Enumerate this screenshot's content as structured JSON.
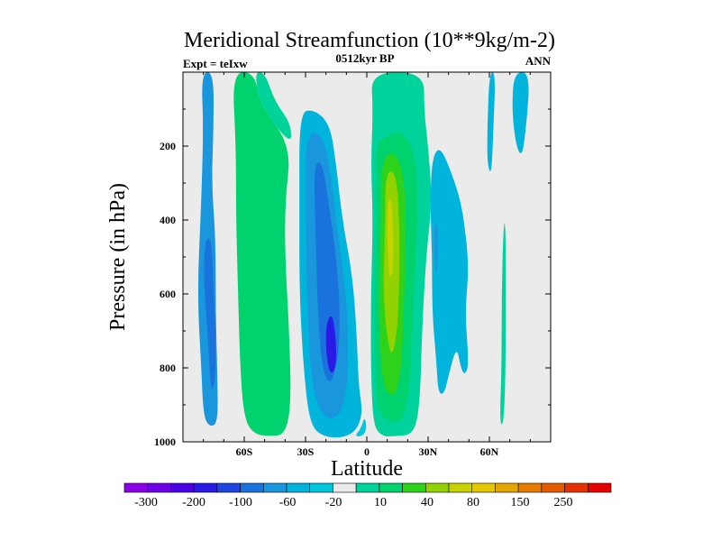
{
  "chart_data": {
    "type": "contour",
    "title": "Meridional Streamfunction (10**9kg/m-2)",
    "left_annotation": "Expt = teIxw",
    "center_annotation": "0512kyr BP",
    "right_annotation": "ANN",
    "xlabel": "Latitude",
    "ylabel": "Pressure (in hPa)",
    "xlim": [
      -90,
      90
    ],
    "ylim": [
      1000,
      0
    ],
    "x_ticks": [
      {
        "value": -60,
        "label": "60S"
      },
      {
        "value": -30,
        "label": "30S"
      },
      {
        "value": 0,
        "label": "0"
      },
      {
        "value": 30,
        "label": "30N"
      },
      {
        "value": 60,
        "label": "60N"
      }
    ],
    "y_ticks": [
      {
        "value": 200,
        "label": "200"
      },
      {
        "value": 400,
        "label": "400"
      },
      {
        "value": 600,
        "label": "600"
      },
      {
        "value": 800,
        "label": "800"
      },
      {
        "value": 1000,
        "label": "1000"
      }
    ],
    "colorbar": {
      "colors": [
        "#8c00e6",
        "#6d00e6",
        "#4b00e6",
        "#2a1ae6",
        "#1f46e0",
        "#1a72dc",
        "#1a96dc",
        "#00b4dc",
        "#00c8dc",
        "#ebebeb",
        "#00d29b",
        "#00d26e",
        "#2fd21a",
        "#91d200",
        "#c8d200",
        "#e6c800",
        "#e6a500",
        "#e67d00",
        "#e65a00",
        "#e63200",
        "#e60000"
      ],
      "labels": [
        "-300",
        "-200",
        "-100",
        "-60",
        "-20",
        "10",
        "40",
        "80",
        "150",
        "250"
      ]
    },
    "regions": [
      {
        "name": "sh-polar-cell",
        "level": -40,
        "points": [
          [
            -81,
            0
          ],
          [
            -80,
            150
          ],
          [
            -81,
            350
          ],
          [
            -83,
            600
          ],
          [
            -81,
            800
          ],
          [
            -80,
            930
          ],
          [
            -77,
            960
          ],
          [
            -73,
            950
          ],
          [
            -73,
            850
          ],
          [
            -74,
            650
          ],
          [
            -74,
            450
          ],
          [
            -76,
            300
          ],
          [
            -75,
            150
          ],
          [
            -75,
            0
          ]
        ]
      },
      {
        "name": "sh-polar-cell-core",
        "level": -60,
        "points": [
          [
            -79,
            450
          ],
          [
            -80,
            550
          ],
          [
            -78,
            700
          ],
          [
            -77,
            800
          ],
          [
            -76,
            870
          ],
          [
            -74,
            820
          ],
          [
            -74,
            700
          ],
          [
            -75,
            600
          ],
          [
            -76,
            450
          ]
        ]
      },
      {
        "name": "sh-ferrel-cell",
        "level": 30,
        "points": [
          [
            -66,
            0
          ],
          [
            -64,
            200
          ],
          [
            -64,
            400
          ],
          [
            -63,
            600
          ],
          [
            -62,
            800
          ],
          [
            -60,
            940
          ],
          [
            -55,
            980
          ],
          [
            -47,
            985
          ],
          [
            -40,
            980
          ],
          [
            -37,
            900
          ],
          [
            -38,
            700
          ],
          [
            -40,
            500
          ],
          [
            -40,
            350
          ],
          [
            -37,
            200
          ],
          [
            -52,
            90
          ],
          [
            -55,
            0
          ]
        ]
      },
      {
        "name": "sh-ferrel-outer",
        "level": 10,
        "points": [
          [
            -55,
            0
          ],
          [
            -52,
            90
          ],
          [
            -37,
            200
          ],
          [
            -37,
            140
          ],
          [
            -45,
            80
          ],
          [
            -50,
            0
          ]
        ]
      },
      {
        "name": "sh-hadley-outer",
        "level": -20,
        "points": [
          [
            -33,
            110
          ],
          [
            -33,
            350
          ],
          [
            -33,
            600
          ],
          [
            -31,
            800
          ],
          [
            -28,
            950
          ],
          [
            -22,
            985
          ],
          [
            -12,
            990
          ],
          [
            -5,
            970
          ],
          [
            -2,
            920
          ],
          [
            -4,
            850
          ],
          [
            -5,
            700
          ],
          [
            -7,
            550
          ],
          [
            -12,
            400
          ],
          [
            -15,
            250
          ],
          [
            -18,
            140
          ],
          [
            -26,
            100
          ]
        ]
      },
      {
        "name": "sh-hadley-mid",
        "level": -40,
        "points": [
          [
            -30,
            160
          ],
          [
            -30,
            400
          ],
          [
            -29,
            650
          ],
          [
            -27,
            850
          ],
          [
            -22,
            930
          ],
          [
            -15,
            940
          ],
          [
            -10,
            880
          ],
          [
            -9,
            750
          ],
          [
            -10,
            600
          ],
          [
            -14,
            450
          ],
          [
            -17,
            300
          ],
          [
            -21,
            170
          ]
        ]
      },
      {
        "name": "sh-hadley-inner",
        "level": -60,
        "points": [
          [
            -26,
            250
          ],
          [
            -25,
            450
          ],
          [
            -24,
            650
          ],
          [
            -22,
            800
          ],
          [
            -18,
            850
          ],
          [
            -14,
            780
          ],
          [
            -13,
            650
          ],
          [
            -15,
            500
          ],
          [
            -19,
            340
          ],
          [
            -22,
            240
          ]
        ]
      },
      {
        "name": "sh-hadley-core",
        "level": -100,
        "points": [
          [
            -20,
            680
          ],
          [
            -20,
            760
          ],
          [
            -18,
            820
          ],
          [
            -15,
            800
          ],
          [
            -15,
            720
          ],
          [
            -17,
            650
          ]
        ]
      },
      {
        "name": "equatorial-gap",
        "level": -10,
        "points": [
          [
            -1,
            930
          ],
          [
            0,
            965
          ],
          [
            -2,
            985
          ],
          [
            -6,
            985
          ],
          [
            -3,
            965
          ]
        ]
      },
      {
        "name": "nh-hadley-outer",
        "level": 10,
        "points": [
          [
            2,
            0
          ],
          [
            3,
            100
          ],
          [
            2,
            250
          ],
          [
            3,
            400
          ],
          [
            2,
            600
          ],
          [
            2,
            800
          ],
          [
            3,
            950
          ],
          [
            7,
            985
          ],
          [
            14,
            985
          ],
          [
            23,
            980
          ],
          [
            26,
            900
          ],
          [
            27,
            700
          ],
          [
            29,
            500
          ],
          [
            32,
            350
          ],
          [
            30,
            200
          ],
          [
            28,
            100
          ],
          [
            28,
            0
          ]
        ]
      },
      {
        "name": "nh-hadley-mid",
        "level": 30,
        "points": [
          [
            4,
            200
          ],
          [
            5,
            350
          ],
          [
            4,
            550
          ],
          [
            4,
            750
          ],
          [
            5,
            920
          ],
          [
            12,
            950
          ],
          [
            18,
            940
          ],
          [
            21,
            850
          ],
          [
            22,
            700
          ],
          [
            24,
            500
          ],
          [
            25,
            350
          ],
          [
            24,
            230
          ],
          [
            18,
            160
          ],
          [
            10,
            170
          ]
        ]
      },
      {
        "name": "nh-hadley-inner",
        "level": 50,
        "points": [
          [
            7,
            250
          ],
          [
            7,
            400
          ],
          [
            6,
            550
          ],
          [
            6,
            700
          ],
          [
            8,
            860
          ],
          [
            14,
            880
          ],
          [
            17,
            800
          ],
          [
            18,
            650
          ],
          [
            19,
            500
          ],
          [
            19,
            350
          ],
          [
            17,
            250
          ],
          [
            12,
            210
          ]
        ]
      },
      {
        "name": "nh-hadley-core",
        "level": 70,
        "points": [
          [
            9,
            290
          ],
          [
            9,
            420
          ],
          [
            8,
            560
          ],
          [
            9,
            680
          ],
          [
            12,
            780
          ],
          [
            15,
            700
          ],
          [
            16,
            560
          ],
          [
            16,
            420
          ],
          [
            15,
            300
          ],
          [
            12,
            260
          ]
        ]
      },
      {
        "name": "nh-hadley-max",
        "level": 90,
        "points": [
          [
            10,
            350
          ],
          [
            10,
            460
          ],
          [
            11,
            570
          ],
          [
            13,
            530
          ],
          [
            13,
            420
          ],
          [
            12,
            340
          ]
        ]
      },
      {
        "name": "nh-ferrel-cell",
        "level": -20,
        "points": [
          [
            32,
            230
          ],
          [
            31,
            350
          ],
          [
            32,
            500
          ],
          [
            32,
            650
          ],
          [
            34,
            780
          ],
          [
            35,
            870
          ],
          [
            38,
            870
          ],
          [
            40,
            820
          ],
          [
            44,
            740
          ],
          [
            46,
            800
          ],
          [
            48,
            820
          ],
          [
            50,
            790
          ],
          [
            48,
            650
          ],
          [
            50,
            530
          ],
          [
            48,
            420
          ],
          [
            46,
            350
          ],
          [
            42,
            280
          ],
          [
            36,
            200
          ]
        ]
      },
      {
        "name": "nh-ferrel-core",
        "level": -40,
        "points": [
          [
            33,
            400
          ],
          [
            33,
            500
          ],
          [
            34,
            560
          ],
          [
            35,
            500
          ],
          [
            35,
            420
          ]
        ]
      },
      {
        "name": "nh-polar-streak",
        "level": 10,
        "points": [
          [
            67,
            400
          ],
          [
            66,
            600
          ],
          [
            66,
            800
          ],
          [
            65,
            950
          ],
          [
            67,
            955
          ],
          [
            68,
            800
          ],
          [
            68,
            600
          ],
          [
            68,
            420
          ]
        ]
      },
      {
        "name": "nh-upper-cell-a",
        "level": -20,
        "points": [
          [
            60,
            0
          ],
          [
            59,
            150
          ],
          [
            59,
            250
          ],
          [
            61,
            280
          ],
          [
            62,
            150
          ],
          [
            63,
            0
          ]
        ]
      },
      {
        "name": "nh-upper-cell-b",
        "level": -20,
        "points": [
          [
            72,
            0
          ],
          [
            71,
            100
          ],
          [
            73,
            200
          ],
          [
            76,
            230
          ],
          [
            78,
            150
          ],
          [
            80,
            0
          ]
        ]
      }
    ]
  }
}
